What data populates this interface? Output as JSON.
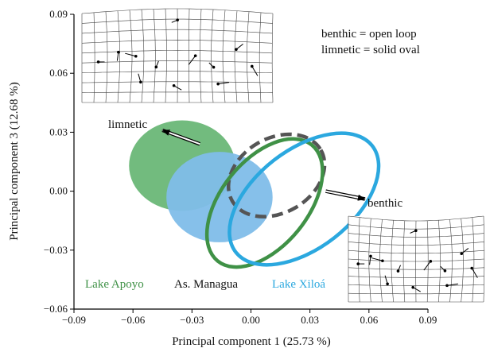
{
  "chart_data": {
    "type": "scatter",
    "xlabel": "Principal component 1 (25.73 %)",
    "ylabel": "Principal component 3 (12.68 %)",
    "xlim": [
      -0.09,
      0.09
    ],
    "ylim": [
      -0.06,
      0.09
    ],
    "x_ticks": [
      -0.09,
      -0.06,
      -0.03,
      0.0,
      0.03,
      0.06,
      0.09
    ],
    "x_tick_labels": [
      "−0.09",
      "−0.06",
      "−0.03",
      "0.00",
      "0.03",
      "0.06",
      "0.09"
    ],
    "y_ticks": [
      -0.06,
      -0.03,
      0.0,
      0.03,
      0.06,
      0.09
    ],
    "y_tick_labels": [
      "−0.06",
      "−0.03",
      "0.00",
      "0.03",
      "0.06",
      "0.09"
    ],
    "legend_notes": [
      "benthic = open loop",
      "limnetic = solid oval"
    ],
    "ellipses": [
      {
        "name": "Lake Apoyo",
        "style": "solid",
        "color": "#6ab777",
        "cx": -0.035,
        "cy": 0.013,
        "rx": 0.027,
        "ry": 0.023,
        "angle": 0
      },
      {
        "name": "Lake Xiloá",
        "style": "solid",
        "color": "#7fbde9",
        "cx": -0.016,
        "cy": -0.003,
        "rx": 0.027,
        "ry": 0.023,
        "angle": 0
      },
      {
        "name": "As. Managua",
        "style": "dashed-loop",
        "color": "#555555",
        "cx": 0.013,
        "cy": 0.008,
        "rx": 0.026,
        "ry": 0.019,
        "angle": 30
      },
      {
        "name": "Lake Apoyo",
        "style": "loop",
        "color": "#3f9146",
        "cx": 0.007,
        "cy": -0.006,
        "rx": 0.038,
        "ry": 0.022,
        "angle": 51
      },
      {
        "name": "Lake Xiloá",
        "style": "loop",
        "color": "#2ba8df",
        "cx": 0.027,
        "cy": -0.004,
        "rx": 0.044,
        "ry": 0.025,
        "angle": 38
      }
    ],
    "annotations": [
      {
        "text": "limnetic",
        "arrow_from": [
          -0.026,
          0.024
        ],
        "arrow_to": [
          -0.045,
          0.031
        ]
      },
      {
        "text": "benthic",
        "arrow_from": [
          0.038,
          0.0
        ],
        "arrow_to": [
          0.058,
          -0.004
        ]
      }
    ],
    "group_labels": [
      {
        "text": "Lake Apoyo",
        "color": "#3f9146"
      },
      {
        "text": "As. Managua",
        "color": "#111111"
      },
      {
        "text": "Lake Xiloá",
        "color": "#2ba8df"
      }
    ]
  }
}
